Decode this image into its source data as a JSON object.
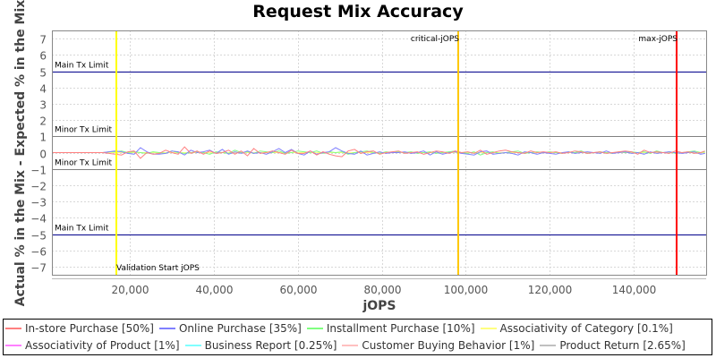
{
  "chart_data": {
    "type": "line",
    "title": "Request Mix Accuracy",
    "xlabel": "jOPS",
    "ylabel": "Actual % in the Mix - Expected % in the Mix",
    "xlim": [
      1400,
      157300
    ],
    "ylim": [
      -7.5,
      7.5
    ],
    "x_ticks": [
      "20,000",
      "40,000",
      "60,000",
      "80,000",
      "100,000",
      "120,000",
      "140,000"
    ],
    "x_tick_values": [
      20000,
      40000,
      60000,
      80000,
      100000,
      120000,
      140000
    ],
    "y_ticks": [
      "7",
      "6",
      "5",
      "4",
      "3",
      "2",
      "1",
      "0",
      "-1",
      "-2",
      "-3",
      "-4",
      "-5",
      "-6",
      "-7"
    ],
    "y_tick_values": [
      7,
      6,
      5,
      4,
      3,
      2,
      1,
      0,
      -1,
      -2,
      -3,
      -4,
      -5,
      -6,
      -7
    ],
    "grid": true,
    "legend_position": "bottom",
    "horizontal_markers": [
      {
        "label": "Main Tx Limit",
        "y": 5,
        "color": "#00008b"
      },
      {
        "label": "Minor Tx Limit",
        "y": 1,
        "color": "#808080"
      },
      {
        "label": "Minor Tx Limit",
        "y": -1,
        "color": "#808080"
      },
      {
        "label": "Main Tx Limit",
        "y": -5,
        "color": "#00008b"
      }
    ],
    "vertical_markers": [
      {
        "label": "Validation Start jOPS",
        "x": 16800,
        "color": "#ffff00"
      },
      {
        "label": "critical-jOPS",
        "x": 98200,
        "color": "#ffc800"
      },
      {
        "label": "max-jOPS",
        "x": 150200,
        "color": "#ff0000"
      }
    ],
    "x": [
      1500,
      3000,
      4500,
      6000,
      7500,
      9000,
      10500,
      12000,
      13500,
      15000,
      16500,
      18000,
      19500,
      21000,
      22500,
      24000,
      25500,
      27000,
      28500,
      30000,
      31500,
      33000,
      34500,
      36000,
      37500,
      39000,
      40500,
      42000,
      43500,
      45000,
      46500,
      48000,
      49500,
      51000,
      52500,
      54000,
      55500,
      57000,
      58500,
      60000,
      61500,
      63000,
      64500,
      66000,
      67500,
      69000,
      70500,
      72000,
      73500,
      75000,
      76500,
      78000,
      79500,
      81000,
      82500,
      84000,
      85500,
      87000,
      88500,
      90000,
      91500,
      93000,
      94500,
      96000,
      97500,
      99000,
      100500,
      102000,
      103500,
      105000,
      106500,
      108000,
      109500,
      111000,
      112500,
      114000,
      115500,
      117000,
      118500,
      120000,
      121500,
      123000,
      124500,
      126000,
      127500,
      129000,
      130500,
      132000,
      133500,
      135000,
      136500,
      138000,
      139500,
      141000,
      142500,
      144000,
      145500,
      147000,
      148500,
      150000,
      151500,
      153000,
      154500,
      156000,
      157000
    ],
    "series": [
      {
        "name": "In-store Purchase [50%]",
        "color": "#ff8080",
        "values": [
          0,
          0,
          0,
          0,
          0,
          0,
          0,
          0,
          0,
          -0.05,
          -0.1,
          -0.15,
          0.05,
          0.1,
          -0.35,
          0,
          -0.1,
          -0.05,
          0.15,
          0,
          -0.1,
          0.35,
          -0.05,
          0.1,
          -0.1,
          0.1,
          -0.05,
          0,
          0.15,
          -0.1,
          0.1,
          -0.2,
          0.25,
          -0.05,
          0,
          0.1,
          0,
          -0.1,
          0.15,
          -0.05,
          -0.05,
          0.1,
          -0.15,
          0.05,
          -0.1,
          -0.2,
          -0.25,
          0.1,
          0.2,
          -0.05,
          0.05,
          0.1,
          -0.1,
          0,
          0.05,
          0.1,
          -0.05,
          0,
          0.05,
          -0.1,
          0,
          0.1,
          0.05,
          -0.05,
          0.1,
          0,
          0.05,
          -0.05,
          0.15,
          -0.1,
          0,
          0.1,
          0.15,
          0.05,
          0,
          -0.05,
          0.1,
          0,
          0.05,
          0,
          0.05,
          -0.05,
          0,
          0.1,
          0.05,
          -0.05,
          0,
          0.05,
          -0.05,
          0,
          0.05,
          0.1,
          0.05,
          -0.1,
          0.15,
          0,
          0.05,
          0,
          -0.05,
          0.1,
          0,
          0.05,
          -0.05,
          0,
          0.1
        ]
      },
      {
        "name": "Online Purchase [35%]",
        "color": "#8080ff",
        "values": [
          0,
          0,
          0,
          0,
          0,
          0,
          0,
          0,
          0,
          0.05,
          0.1,
          0.05,
          -0.05,
          -0.1,
          0.3,
          0.05,
          -0.1,
          -0.1,
          -0.05,
          0.1,
          0.05,
          -0.15,
          0.15,
          0,
          0.05,
          0.15,
          -0.05,
          0.2,
          -0.1,
          0.05,
          -0.05,
          0.1,
          -0.05,
          0,
          -0.1,
          0.05,
          0.25,
          0,
          0.2,
          -0.05,
          -0.15,
          0.1,
          -0.1,
          0,
          0.05,
          0.3,
          0.1,
          -0.05,
          -0.1,
          0.1,
          -0.15,
          -0.05,
          0.05,
          -0.05,
          0,
          0,
          0.05,
          -0.05,
          0,
          0.1,
          -0.15,
          0.05,
          -0.1,
          0,
          0.05,
          -0.05,
          -0.1,
          -0.15,
          0.05,
          0.1,
          -0.1,
          -0.05,
          0,
          -0.05,
          -0.15,
          0.05,
          0,
          -0.1,
          0,
          -0.05,
          -0.1,
          0,
          0.05,
          -0.05,
          0,
          0.05,
          0,
          -0.05,
          0.1,
          -0.05,
          0,
          0.05,
          -0.05,
          0,
          -0.1,
          0.05,
          -0.05,
          0,
          0.05,
          0,
          -0.05,
          0,
          0.05,
          -0.1,
          -0.05
        ]
      },
      {
        "name": "Installment Purchase [10%]",
        "color": "#80ff80",
        "values": [
          0,
          0,
          0,
          0,
          0,
          0,
          0,
          0,
          0,
          0.05,
          0.05,
          0.1,
          0,
          0.05,
          0,
          -0.05,
          0.05,
          0,
          -0.05,
          0.1,
          0,
          -0.05,
          0,
          0.05,
          0,
          -0.1,
          0.05,
          0,
          -0.05,
          0.15,
          0,
          0.05,
          -0.05,
          0.1,
          0.05,
          0,
          0.1,
          -0.05,
          0,
          0.1,
          0.05,
          0,
          0.1,
          -0.05,
          0.05,
          0,
          0.05,
          -0.1,
          0,
          0.05,
          0.1,
          0,
          -0.05,
          0.05,
          0,
          0.05,
          0,
          0.05,
          -0.05,
          0,
          0.05,
          -0.05,
          0,
          0.05,
          0.1,
          0,
          -0.05,
          0.05,
          -0.15,
          0,
          0.05,
          -0.05,
          0,
          0.05,
          0.1,
          -0.05,
          0,
          0.05,
          0,
          0.05,
          0,
          -0.05,
          0.05,
          0,
          0.1,
          -0.05,
          0,
          0.05,
          0,
          -0.05,
          0.05,
          0,
          0.05,
          0,
          0.05,
          -0.05,
          0.1,
          0,
          0.05,
          -0.05,
          0,
          0.05,
          0.1,
          0,
          0.05
        ]
      },
      {
        "name": "Associativity of Category [0.1%]",
        "color": "#ffff80",
        "values": [
          0,
          0,
          0,
          0,
          0,
          0,
          0,
          0,
          0,
          0,
          0,
          0,
          0,
          0,
          0,
          0,
          0,
          0,
          0,
          0,
          0,
          0,
          0,
          0,
          0,
          0,
          0,
          0,
          0,
          0,
          0,
          0,
          0,
          0,
          0,
          0,
          0,
          0,
          0,
          0,
          0,
          0,
          0,
          0,
          0,
          0,
          0,
          0,
          0,
          0,
          0,
          0,
          0,
          0,
          0,
          0,
          0,
          0,
          0,
          0,
          0,
          0,
          0,
          0,
          0,
          0,
          0,
          0,
          0,
          0,
          0,
          0,
          0,
          0,
          0,
          0,
          0,
          0,
          0,
          0,
          0,
          0,
          0,
          0,
          0,
          0,
          0,
          0,
          0,
          0,
          0,
          0,
          0,
          0,
          0,
          0,
          0,
          0,
          0,
          0,
          0,
          0,
          0,
          0,
          0
        ]
      },
      {
        "name": "Associativity of Product [1%]",
        "color": "#ff80ff",
        "values": [
          0,
          0,
          0,
          0,
          0,
          0,
          0,
          0,
          0,
          0,
          0,
          0,
          0,
          0,
          0,
          0,
          0,
          0,
          0,
          0,
          0,
          0,
          0,
          0,
          0,
          0,
          0,
          0,
          0,
          0,
          0,
          0,
          0,
          0,
          0,
          0,
          0,
          0,
          0,
          0,
          0,
          0,
          0,
          0,
          0,
          0,
          0,
          0,
          0,
          0,
          0,
          0,
          0,
          0,
          0,
          0,
          0,
          0,
          0,
          0,
          0,
          0,
          0,
          0,
          0,
          0,
          0,
          0,
          0,
          0,
          0,
          0,
          0,
          0,
          0,
          0,
          0,
          0,
          0,
          0,
          0,
          0,
          0,
          0,
          0,
          0,
          0,
          0,
          0,
          0,
          0,
          0,
          0,
          0,
          0,
          0,
          0,
          0,
          0,
          0,
          0,
          0,
          0,
          0,
          0
        ]
      },
      {
        "name": "Business Report [0.25%]",
        "color": "#80ffff",
        "values": [
          0,
          0,
          0,
          0,
          0,
          0,
          0,
          0,
          0,
          0,
          0,
          0,
          0,
          0,
          0,
          0,
          0,
          0,
          0,
          0,
          0,
          0,
          0,
          0,
          0,
          0,
          0,
          0,
          0,
          0,
          0,
          0,
          0,
          0,
          0,
          0,
          0,
          0,
          0,
          0,
          0,
          0,
          0,
          0,
          0,
          0,
          0,
          0,
          0,
          0,
          0,
          0,
          0,
          0,
          0,
          0,
          0,
          0,
          0,
          0,
          0,
          0,
          0,
          0,
          0,
          0,
          0,
          0,
          0,
          0,
          0,
          0,
          0,
          0,
          0,
          0,
          0,
          0,
          0,
          0,
          0,
          0,
          0,
          0,
          0,
          0,
          0,
          0,
          0,
          0,
          0,
          0,
          0,
          0,
          0,
          0,
          0,
          0,
          0,
          0,
          0,
          0,
          0,
          0,
          0
        ]
      },
      {
        "name": "Customer Buying Behavior [1%]",
        "color": "#ffc0c0",
        "values": [
          0,
          0,
          0,
          0,
          0,
          0,
          0,
          0,
          0,
          0,
          0,
          0,
          0,
          0,
          0,
          0,
          0,
          0,
          0,
          0,
          0,
          0,
          0,
          0,
          0,
          0,
          0,
          0,
          0,
          0,
          0,
          0,
          0,
          0,
          0,
          0,
          0,
          0,
          0,
          0,
          0,
          0,
          0,
          0,
          0,
          0,
          0,
          0,
          0,
          0,
          0,
          0,
          0,
          0,
          0,
          0,
          0,
          0,
          0,
          0,
          0,
          0,
          0,
          0,
          0,
          0,
          0,
          0,
          0,
          0,
          0,
          0,
          0,
          0,
          0,
          0,
          0,
          0,
          0,
          0,
          0,
          0,
          0,
          0,
          0,
          0,
          0,
          0,
          0,
          0,
          0,
          0,
          0,
          0,
          0,
          0,
          0,
          0,
          0,
          0,
          0,
          0,
          0,
          0,
          0
        ]
      },
      {
        "name": "Product Return [2.65%]",
        "color": "#c0c0c0",
        "values": [
          0,
          0,
          0,
          0,
          0,
          0,
          0,
          0,
          0,
          0,
          0,
          0,
          0,
          0,
          0,
          0,
          0,
          0,
          0,
          0,
          0,
          0,
          0,
          0,
          0,
          0,
          0,
          0,
          0,
          0,
          0,
          0,
          0,
          0,
          0,
          0,
          0,
          0,
          0,
          0,
          0,
          0,
          0,
          0,
          0,
          0,
          0,
          0,
          0,
          0,
          0,
          0,
          0,
          0,
          0,
          0,
          0,
          0,
          0,
          0,
          0,
          0,
          0,
          0,
          0,
          0,
          0,
          0,
          0,
          0,
          0,
          0,
          0,
          0,
          0,
          0,
          0,
          0,
          0,
          0,
          0,
          0,
          0,
          0,
          0,
          0,
          0,
          0,
          0,
          0,
          0,
          0,
          0,
          0,
          0,
          0,
          0,
          0,
          0,
          0,
          0,
          0,
          0,
          0,
          0
        ]
      }
    ]
  },
  "legend": {
    "row1": [
      {
        "label": "In-store Purchase [50%]",
        "color": "#ff8080"
      },
      {
        "label": "Online Purchase [35%]",
        "color": "#8080ff"
      },
      {
        "label": "Installment Purchase [10%]",
        "color": "#80ff80"
      },
      {
        "label": "Associativity of Category [0.1%]",
        "color": "#ffff80"
      }
    ],
    "row2": [
      {
        "label": "Associativity of Product [1%]",
        "color": "#ff80ff"
      },
      {
        "label": "Business Report [0.25%]",
        "color": "#80ffff"
      },
      {
        "label": "Customer Buying Behavior [1%]",
        "color": "#ffc0c0"
      },
      {
        "label": "Product Return [2.65%]",
        "color": "#c0c0c0"
      }
    ]
  }
}
